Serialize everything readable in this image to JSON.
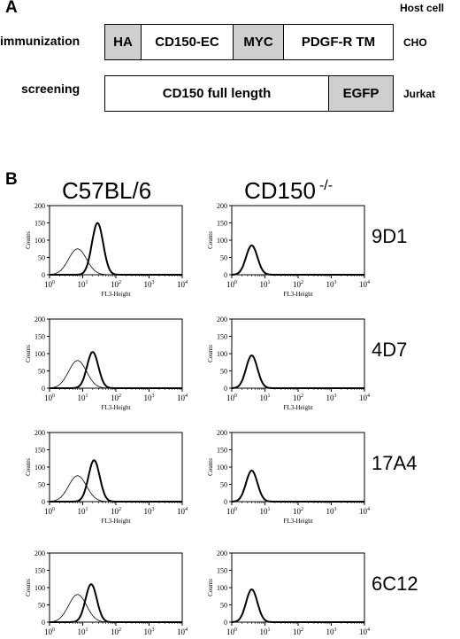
{
  "panel_a": {
    "letter": "A",
    "host_header": "Host cell",
    "rows": [
      {
        "label": "immunization",
        "host": "CHO",
        "segments": [
          {
            "text": "HA",
            "shade": "gray"
          },
          {
            "text": "CD150-EC",
            "shade": "white"
          },
          {
            "text": "MYC",
            "shade": "gray"
          },
          {
            "text": "PDGF-R TM",
            "shade": "white"
          }
        ]
      },
      {
        "label": "screening",
        "host": "Jurkat",
        "segments": [
          {
            "text": "CD150 full length",
            "shade": "white"
          },
          {
            "text": "EGFP",
            "shade": "gray"
          }
        ]
      }
    ]
  },
  "panel_b": {
    "letter": "B",
    "columns": [
      {
        "title": "C57BL/6",
        "sup": ""
      },
      {
        "title": "CD150",
        "sup": "-/-"
      }
    ],
    "clones": [
      "9D1",
      "4D7",
      "17A4",
      "6C12"
    ],
    "axes": {
      "ylabel": "Counts",
      "xlabel": "FL3-Height",
      "yticks": [
        "0",
        "50",
        "100",
        "150",
        "200"
      ],
      "xtick_base": "10",
      "xtick_exps": [
        "0",
        "1",
        "2",
        "3",
        "4"
      ]
    }
  },
  "chart_data": [
    {
      "type": "line",
      "title": "9D1 C57BL/6",
      "x_scale": "log",
      "xlim": [
        1,
        10000
      ],
      "ylim": [
        0,
        200
      ],
      "xlabel": "FL3-Height",
      "ylabel": "Counts",
      "series": [
        {
          "style": "thin",
          "peak_x": 7,
          "peak_y": 75
        },
        {
          "style": "thick",
          "peak_x": 28,
          "peak_y": 150
        }
      ]
    },
    {
      "type": "line",
      "title": "9D1 CD150-/-",
      "x_scale": "log",
      "xlim": [
        1,
        10000
      ],
      "ylim": [
        0,
        200
      ],
      "xlabel": "FL3-Height",
      "ylabel": "Counts",
      "series": [
        {
          "style": "thick",
          "peak_x": 4,
          "peak_y": 85
        }
      ]
    },
    {
      "type": "line",
      "title": "4D7 C57BL/6",
      "x_scale": "log",
      "xlim": [
        1,
        10000
      ],
      "ylim": [
        0,
        200
      ],
      "xlabel": "FL3-Height",
      "ylabel": "Counts",
      "series": [
        {
          "style": "thin",
          "peak_x": 7,
          "peak_y": 80
        },
        {
          "style": "thick",
          "peak_x": 20,
          "peak_y": 105
        }
      ]
    },
    {
      "type": "line",
      "title": "4D7 CD150-/-",
      "x_scale": "log",
      "xlim": [
        1,
        10000
      ],
      "ylim": [
        0,
        200
      ],
      "xlabel": "FL3-Height",
      "ylabel": "Counts",
      "series": [
        {
          "style": "thick",
          "peak_x": 4,
          "peak_y": 95
        }
      ]
    },
    {
      "type": "line",
      "title": "17A4 C57BL/6",
      "x_scale": "log",
      "xlim": [
        1,
        10000
      ],
      "ylim": [
        0,
        200
      ],
      "xlabel": "FL3-Height",
      "ylabel": "Counts",
      "series": [
        {
          "style": "thin",
          "peak_x": 7,
          "peak_y": 75
        },
        {
          "style": "thick",
          "peak_x": 22,
          "peak_y": 120
        }
      ]
    },
    {
      "type": "line",
      "title": "17A4 CD150-/-",
      "x_scale": "log",
      "xlim": [
        1,
        10000
      ],
      "ylim": [
        0,
        200
      ],
      "xlabel": "FL3-Height",
      "ylabel": "Counts",
      "series": [
        {
          "style": "thick",
          "peak_x": 4,
          "peak_y": 90
        }
      ]
    },
    {
      "type": "line",
      "title": "6C12 C57BL/6",
      "x_scale": "log",
      "xlim": [
        1,
        10000
      ],
      "ylim": [
        0,
        200
      ],
      "xlabel": "FL3-Height",
      "ylabel": "Counts",
      "series": [
        {
          "style": "thin",
          "peak_x": 7,
          "peak_y": 80
        },
        {
          "style": "thick",
          "peak_x": 18,
          "peak_y": 110
        }
      ]
    },
    {
      "type": "line",
      "title": "6C12 CD150-/-",
      "x_scale": "log",
      "xlim": [
        1,
        10000
      ],
      "ylim": [
        0,
        200
      ],
      "xlabel": "FL3-Height",
      "ylabel": "Counts",
      "series": [
        {
          "style": "thick",
          "peak_x": 4,
          "peak_y": 95
        }
      ]
    }
  ]
}
